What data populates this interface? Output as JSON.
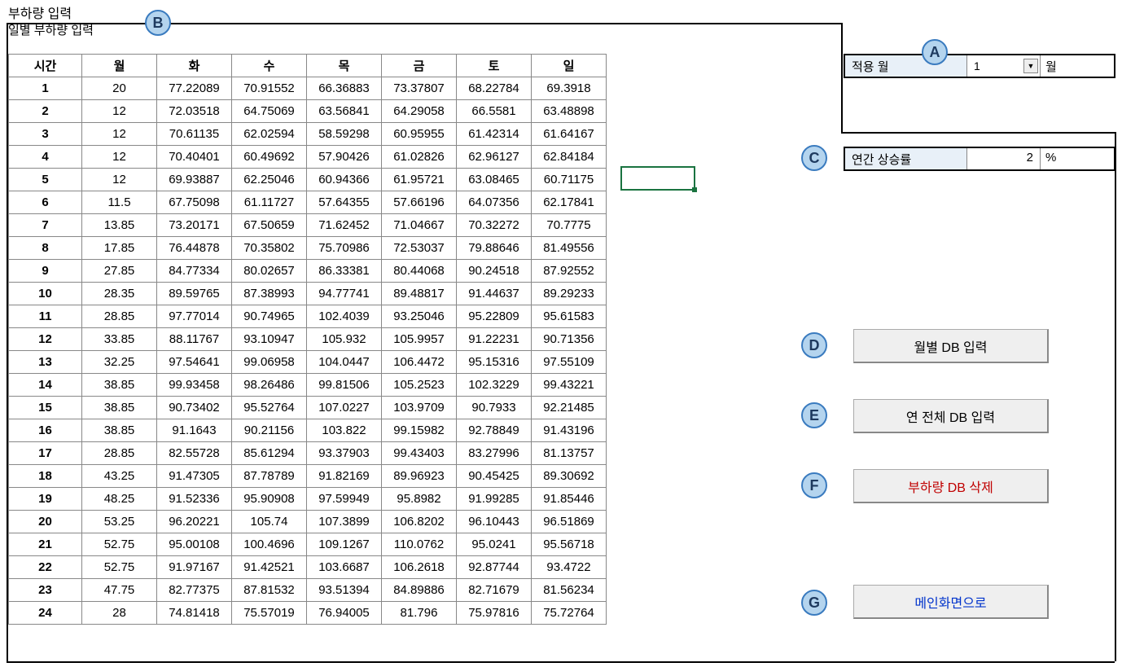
{
  "title": "부하량 입력",
  "subtitle": "일별 부하량 입력",
  "table": {
    "headers": [
      "시간",
      "월",
      "화",
      "수",
      "목",
      "금",
      "토",
      "일"
    ],
    "rows": [
      [
        "1",
        "20",
        "77.22089",
        "70.91552",
        "66.36883",
        "73.37807",
        "68.22784",
        "69.3918"
      ],
      [
        "2",
        "12",
        "72.03518",
        "64.75069",
        "63.56841",
        "64.29058",
        "66.5581",
        "63.48898"
      ],
      [
        "3",
        "12",
        "70.61135",
        "62.02594",
        "58.59298",
        "60.95955",
        "61.42314",
        "61.64167"
      ],
      [
        "4",
        "12",
        "70.40401",
        "60.49692",
        "57.90426",
        "61.02826",
        "62.96127",
        "62.84184"
      ],
      [
        "5",
        "12",
        "69.93887",
        "62.25046",
        "60.94366",
        "61.95721",
        "63.08465",
        "60.71175"
      ],
      [
        "6",
        "11.5",
        "67.75098",
        "61.11727",
        "57.64355",
        "57.66196",
        "64.07356",
        "62.17841"
      ],
      [
        "7",
        "13.85",
        "73.20171",
        "67.50659",
        "71.62452",
        "71.04667",
        "70.32272",
        "70.7775"
      ],
      [
        "8",
        "17.85",
        "76.44878",
        "70.35802",
        "75.70986",
        "72.53037",
        "79.88646",
        "81.49556"
      ],
      [
        "9",
        "27.85",
        "84.77334",
        "80.02657",
        "86.33381",
        "80.44068",
        "90.24518",
        "87.92552"
      ],
      [
        "10",
        "28.35",
        "89.59765",
        "87.38993",
        "94.77741",
        "89.48817",
        "91.44637",
        "89.29233"
      ],
      [
        "11",
        "28.85",
        "97.77014",
        "90.74965",
        "102.4039",
        "93.25046",
        "95.22809",
        "95.61583"
      ],
      [
        "12",
        "33.85",
        "88.11767",
        "93.10947",
        "105.932",
        "105.9957",
        "91.22231",
        "90.71356"
      ],
      [
        "13",
        "32.25",
        "97.54641",
        "99.06958",
        "104.0447",
        "106.4472",
        "95.15316",
        "97.55109"
      ],
      [
        "14",
        "38.85",
        "99.93458",
        "98.26486",
        "99.81506",
        "105.2523",
        "102.3229",
        "99.43221"
      ],
      [
        "15",
        "38.85",
        "90.73402",
        "95.52764",
        "107.0227",
        "103.9709",
        "90.7933",
        "92.21485"
      ],
      [
        "16",
        "38.85",
        "91.1643",
        "90.21156",
        "103.822",
        "99.15982",
        "92.78849",
        "91.43196"
      ],
      [
        "17",
        "28.85",
        "82.55728",
        "85.61294",
        "93.37903",
        "99.43403",
        "83.27996",
        "81.13757"
      ],
      [
        "18",
        "43.25",
        "91.47305",
        "87.78789",
        "91.82169",
        "89.96923",
        "90.45425",
        "89.30692"
      ],
      [
        "19",
        "48.25",
        "91.52336",
        "95.90908",
        "97.59949",
        "95.8982",
        "91.99285",
        "91.85446"
      ],
      [
        "20",
        "53.25",
        "96.20221",
        "105.74",
        "107.3899",
        "106.8202",
        "96.10443",
        "96.51869"
      ],
      [
        "21",
        "52.75",
        "95.00108",
        "100.4696",
        "109.1267",
        "110.0762",
        "95.0241",
        "95.56718"
      ],
      [
        "22",
        "52.75",
        "91.97167",
        "91.42521",
        "103.6687",
        "106.2618",
        "92.87744",
        "93.4722"
      ],
      [
        "23",
        "47.75",
        "82.77375",
        "87.81532",
        "93.51394",
        "84.89886",
        "82.71679",
        "81.56234"
      ],
      [
        "24",
        "28",
        "74.81418",
        "75.57019",
        "76.94005",
        "81.796",
        "75.97816",
        "75.72764"
      ]
    ]
  },
  "apply_month": {
    "label": "적용 월",
    "value": "1",
    "unit": "월"
  },
  "annual_rate": {
    "label": "연간 상승률",
    "value": "2",
    "unit": "%"
  },
  "buttons": {
    "monthly_db": "월별 DB 입력",
    "yearly_db": "연 전체 DB 입력",
    "delete_db": "부하량 DB 삭제",
    "main_screen": "메인화면으로"
  },
  "badges": {
    "a": "A",
    "b": "B",
    "c": "C",
    "d": "D",
    "e": "E",
    "f": "F",
    "g": "G"
  },
  "colors": {
    "badge_bg": "#b4d4ee",
    "badge_border": "#3a7bbf",
    "field_bg": "#e8f0f8",
    "btn_bg": "#efefef",
    "red": "#c00000",
    "blue": "#0033cc",
    "select_border": "#1a7340"
  }
}
